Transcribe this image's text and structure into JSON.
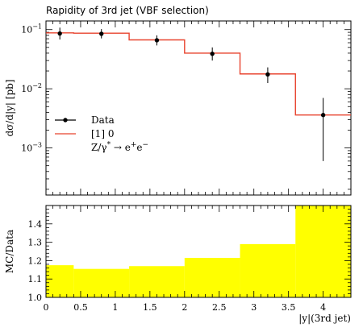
{
  "chart_data": [
    {
      "type": "line",
      "title": "Rapidity of 3rd jet (VBF selection)",
      "ylabel": "dσ/d|y| [pb]",
      "xlabel": "",
      "yscale": "log",
      "xlim": [
        0,
        4.4
      ],
      "ylim": [
        0.00016,
        0.14
      ],
      "y_ticks": [
        {
          "value": 0.1,
          "base": "10",
          "exp": "−1"
        },
        {
          "value": 0.01,
          "base": "10",
          "exp": "−2"
        },
        {
          "value": 0.001,
          "base": "10",
          "exp": "−3"
        }
      ],
      "series": [
        {
          "name": "Data",
          "kind": "points-with-errors",
          "color": "#000000",
          "x": [
            0.2,
            0.8,
            1.6,
            2.4,
            3.2,
            4.0
          ],
          "y": [
            0.086,
            0.085,
            0.066,
            0.039,
            0.0175,
            0.0036
          ],
          "yerr_low": [
            0.018,
            0.014,
            0.012,
            0.009,
            0.005,
            0.003
          ],
          "yerr_high": [
            0.022,
            0.017,
            0.014,
            0.011,
            0.0055,
            0.0034
          ]
        },
        {
          "name": "[1] 0",
          "kind": "step-histogram",
          "color": "#e8432e",
          "bin_edges": [
            0,
            0.4,
            1.2,
            2.0,
            2.8,
            3.6,
            4.4
          ],
          "values": [
            0.088,
            0.087,
            0.067,
            0.04,
            0.0178,
            0.0036
          ]
        }
      ],
      "legend": {
        "placement": "left-middle",
        "entries": [
          {
            "label": "Data"
          },
          {
            "label": "[1] 0"
          },
          {
            "label_parts": [
              "Z/γ",
              "*",
              " → e",
              "+",
              "e",
              "−"
            ]
          }
        ]
      }
    },
    {
      "type": "area",
      "ylabel": "MC/Data",
      "xlabel": "|y|(3rd jet)",
      "xlim": [
        0,
        4.4
      ],
      "ylim": [
        1.0,
        1.5
      ],
      "fill_color": "#ffff00",
      "bin_edges": [
        0,
        0.4,
        1.2,
        2.0,
        2.8,
        3.6,
        4.4
      ],
      "values": [
        1.175,
        1.155,
        1.17,
        1.215,
        1.29,
        1.5
      ],
      "x_ticks": [
        0,
        0.5,
        1,
        1.5,
        2,
        2.5,
        3,
        3.5,
        4
      ],
      "x_tick_labels": [
        "0",
        "0.5",
        "1",
        "1.5",
        "2",
        "2.5",
        "3",
        "3.5",
        "4"
      ],
      "y_ticks": [
        1.0,
        1.1,
        1.2,
        1.3,
        1.4
      ],
      "y_tick_labels": [
        "1.0",
        "1.1",
        "1.2",
        "1.3",
        "1.4"
      ]
    }
  ]
}
